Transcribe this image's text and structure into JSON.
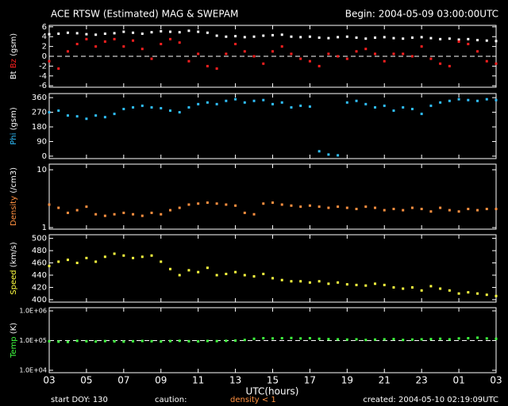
{
  "header": {
    "title": "ACE RTSW (Estimated) MAG & SWEPAM",
    "begin": "Begin: 2004-05-09 03:00:00UTC"
  },
  "x_axis": {
    "label": "UTC(hours)",
    "xlim": [
      0,
      24
    ],
    "xticks": [
      {
        "value": 0,
        "label": "03"
      },
      {
        "value": 2,
        "label": "05"
      },
      {
        "value": 4,
        "label": "07"
      },
      {
        "value": 6,
        "label": "09"
      },
      {
        "value": 8,
        "label": "11"
      },
      {
        "value": 10,
        "label": "13"
      },
      {
        "value": 12,
        "label": "15"
      },
      {
        "value": 14,
        "label": "17"
      },
      {
        "value": 16,
        "label": "19"
      },
      {
        "value": 18,
        "label": "21"
      },
      {
        "value": 20,
        "label": "23"
      },
      {
        "value": 22,
        "label": "01"
      },
      {
        "value": 24,
        "label": "03"
      }
    ]
  },
  "footer": {
    "start": "start DOY: 130",
    "caution": "caution:",
    "density_note": "density < 1",
    "created": "created: 2004-05-10 02:19:09UTC"
  },
  "chart_data": [
    {
      "type": "scatter",
      "ylabel": [
        {
          "text": "Bt",
          "color": "#ffffff"
        },
        {
          "text": "Bz",
          "color": "#ff2020"
        },
        {
          "text": "(gsm)",
          "color": "#ffffff"
        }
      ],
      "ylim": [
        -6.3,
        6.3
      ],
      "yticks": [
        -6,
        -4,
        -2,
        0,
        2,
        4,
        6
      ],
      "log": false,
      "reference_line": 0,
      "x": [
        0,
        0.5,
        1,
        1.5,
        2,
        2.5,
        3,
        3.5,
        4,
        4.5,
        5,
        5.5,
        6,
        6.5,
        7,
        7.5,
        8,
        8.5,
        9,
        9.5,
        10,
        10.5,
        11,
        11.5,
        12,
        12.5,
        13,
        13.5,
        14,
        14.5,
        15,
        15.5,
        16,
        16.5,
        17,
        17.5,
        18,
        18.5,
        19,
        19.5,
        20,
        20.5,
        21,
        21.5,
        22,
        22.5,
        23,
        23.5,
        24
      ],
      "series": [
        {
          "name": "Bt",
          "color": "#ffffff",
          "values": [
            4.5,
            4.6,
            4.8,
            4.7,
            4.5,
            4.4,
            4.6,
            4.7,
            5.0,
            4.8,
            4.6,
            4.9,
            5.1,
            5.0,
            4.9,
            5.2,
            5.0,
            4.8,
            4.2,
            4.0,
            4.1,
            3.9,
            4.0,
            4.2,
            4.3,
            4.4,
            4.0,
            3.9,
            4.0,
            3.8,
            3.7,
            3.9,
            4.0,
            3.8,
            3.6,
            3.8,
            3.9,
            3.7,
            3.6,
            3.8,
            3.9,
            3.7,
            3.5,
            3.6,
            3.4,
            3.5,
            3.3,
            3.2,
            3.1
          ]
        },
        {
          "name": "Bz",
          "color": "#ff2020",
          "values": [
            -1,
            -2.5,
            1,
            2.5,
            3.5,
            2,
            3,
            3.5,
            2,
            3.2,
            1.5,
            -0.5,
            2.5,
            3.5,
            2.8,
            -1,
            0.5,
            -2,
            -2.5,
            0.5,
            2.5,
            1,
            0,
            -1.5,
            1,
            2,
            0.5,
            -0.5,
            -1,
            -2,
            0.5,
            0,
            -0.5,
            1,
            1.5,
            0.5,
            -1,
            0.5,
            0.5,
            0,
            2,
            -0.5,
            -1.5,
            -2,
            3,
            2.5,
            1,
            -1,
            -1.5
          ]
        }
      ]
    },
    {
      "type": "scatter",
      "ylabel": [
        {
          "text": "Phi",
          "color": "#30c0ff"
        },
        {
          "text": "(gsm)",
          "color": "#ffffff"
        }
      ],
      "ylim": [
        -15,
        385
      ],
      "yticks": [
        0,
        90,
        180,
        270,
        360
      ],
      "log": false,
      "x": [
        0,
        0.5,
        1,
        1.5,
        2,
        2.5,
        3,
        3.5,
        4,
        4.5,
        5,
        5.5,
        6,
        6.5,
        7,
        7.5,
        8,
        8.5,
        9,
        9.5,
        10,
        10.5,
        11,
        11.5,
        12,
        12.5,
        13,
        13.5,
        14,
        14.5,
        15,
        15.5,
        16,
        16.5,
        17,
        17.5,
        18,
        18.5,
        19,
        19.5,
        20,
        20.5,
        21,
        21.5,
        22,
        22.5,
        23,
        23.5,
        24
      ],
      "series": [
        {
          "name": "Phi",
          "color": "#30c0ff",
          "values": [
            270,
            280,
            250,
            245,
            230,
            250,
            240,
            260,
            290,
            300,
            310,
            300,
            295,
            280,
            270,
            300,
            320,
            330,
            320,
            340,
            350,
            330,
            340,
            345,
            320,
            330,
            300,
            310,
            305,
            30,
            10,
            5,
            330,
            340,
            320,
            300,
            310,
            280,
            300,
            290,
            260,
            310,
            330,
            340,
            350,
            345,
            340,
            350,
            345
          ]
        }
      ]
    },
    {
      "type": "scatter",
      "ylabel": [
        {
          "text": "Density",
          "color": "#ff9040"
        },
        {
          "text": "(/cm3)",
          "color": "#ffffff"
        }
      ],
      "ylim": [
        0.94,
        12.5
      ],
      "yticks": [
        1,
        10
      ],
      "log": true,
      "x": [
        0,
        0.5,
        1,
        1.5,
        2,
        2.5,
        3,
        3.5,
        4,
        4.5,
        5,
        5.5,
        6,
        6.5,
        7,
        7.5,
        8,
        8.5,
        9,
        9.5,
        10,
        10.5,
        11,
        11.5,
        12,
        12.5,
        13,
        13.5,
        14,
        14.5,
        15,
        15.5,
        16,
        16.5,
        17,
        17.5,
        18,
        18.5,
        19,
        19.5,
        20,
        20.5,
        21,
        21.5,
        22,
        22.5,
        23,
        23.5,
        24
      ],
      "series": [
        {
          "name": "Density",
          "color": "#ff9040",
          "values": [
            2.5,
            2.2,
            1.8,
            2.0,
            2.3,
            1.7,
            1.6,
            1.7,
            1.8,
            1.7,
            1.6,
            1.8,
            1.7,
            2.0,
            2.2,
            2.5,
            2.6,
            2.7,
            2.6,
            2.5,
            2.4,
            1.8,
            1.7,
            2.6,
            2.7,
            2.5,
            2.4,
            2.3,
            2.4,
            2.3,
            2.2,
            2.3,
            2.2,
            2.1,
            2.3,
            2.2,
            2.0,
            2.1,
            2.0,
            2.2,
            2.1,
            1.9,
            2.2,
            2.0,
            1.9,
            2.1,
            2.0,
            2.1,
            2.1
          ]
        }
      ]
    },
    {
      "type": "scatter",
      "ylabel": [
        {
          "text": "Speed",
          "color": "#ffff40"
        },
        {
          "text": "(km/s)",
          "color": "#ffffff"
        }
      ],
      "ylim": [
        396,
        506
      ],
      "yticks": [
        400,
        420,
        440,
        460,
        480,
        500
      ],
      "log": false,
      "x": [
        0,
        0.5,
        1,
        1.5,
        2,
        2.5,
        3,
        3.5,
        4,
        4.5,
        5,
        5.5,
        6,
        6.5,
        7,
        7.5,
        8,
        8.5,
        9,
        9.5,
        10,
        10.5,
        11,
        11.5,
        12,
        12.5,
        13,
        13.5,
        14,
        14.5,
        15,
        15.5,
        16,
        16.5,
        17,
        17.5,
        18,
        18.5,
        19,
        19.5,
        20,
        20.5,
        21,
        21.5,
        22,
        22.5,
        23,
        23.5,
        24
      ],
      "series": [
        {
          "name": "Speed",
          "color": "#ffff40",
          "values": [
            455,
            462,
            465,
            460,
            468,
            462,
            470,
            475,
            472,
            468,
            470,
            472,
            462,
            450,
            440,
            448,
            445,
            452,
            440,
            442,
            445,
            440,
            438,
            442,
            435,
            432,
            430,
            430,
            428,
            430,
            426,
            428,
            425,
            424,
            423,
            426,
            424,
            420,
            418,
            420,
            415,
            422,
            418,
            415,
            410,
            412,
            410,
            408,
            406
          ]
        }
      ]
    },
    {
      "type": "scatter",
      "ylabel": [
        {
          "text": "Temp",
          "color": "#40ff40"
        },
        {
          "text": "(K)",
          "color": "#ffffff"
        }
      ],
      "ylim": [
        8300,
        1280000
      ],
      "yticks": [
        {
          "value": 10000,
          "label": "1.0E+04"
        },
        {
          "value": 100000,
          "label": "1.0E+05"
        },
        {
          "value": 1000000,
          "label": "1.0E+06"
        }
      ],
      "log": true,
      "reference_line": 100000,
      "x": [
        0,
        0.5,
        1,
        1.5,
        2,
        2.5,
        3,
        3.5,
        4,
        4.5,
        5,
        5.5,
        6,
        6.5,
        7,
        7.5,
        8,
        8.5,
        9,
        9.5,
        10,
        10.5,
        11,
        11.5,
        12,
        12.5,
        13,
        13.5,
        14,
        14.5,
        15,
        15.5,
        16,
        16.5,
        17,
        17.5,
        18,
        18.5,
        19,
        19.5,
        20,
        20.5,
        21,
        21.5,
        22,
        22.5,
        23,
        23.5,
        24
      ],
      "series": [
        {
          "name": "Temp",
          "color": "#40ff40",
          "values": [
            95000,
            92000,
            90000,
            98000,
            95000,
            93000,
            96000,
            94000,
            92000,
            95000,
            97000,
            95000,
            93000,
            96000,
            98000,
            95000,
            94000,
            97000,
            96000,
            98000,
            100000,
            105000,
            115000,
            120000,
            118000,
            120000,
            122000,
            118000,
            120000,
            115000,
            112000,
            110000,
            108000,
            110000,
            105000,
            108000,
            110000,
            112000,
            105000,
            108000,
            110000,
            112000,
            115000,
            110000,
            118000,
            120000,
            125000,
            118000,
            115000
          ]
        }
      ]
    }
  ]
}
